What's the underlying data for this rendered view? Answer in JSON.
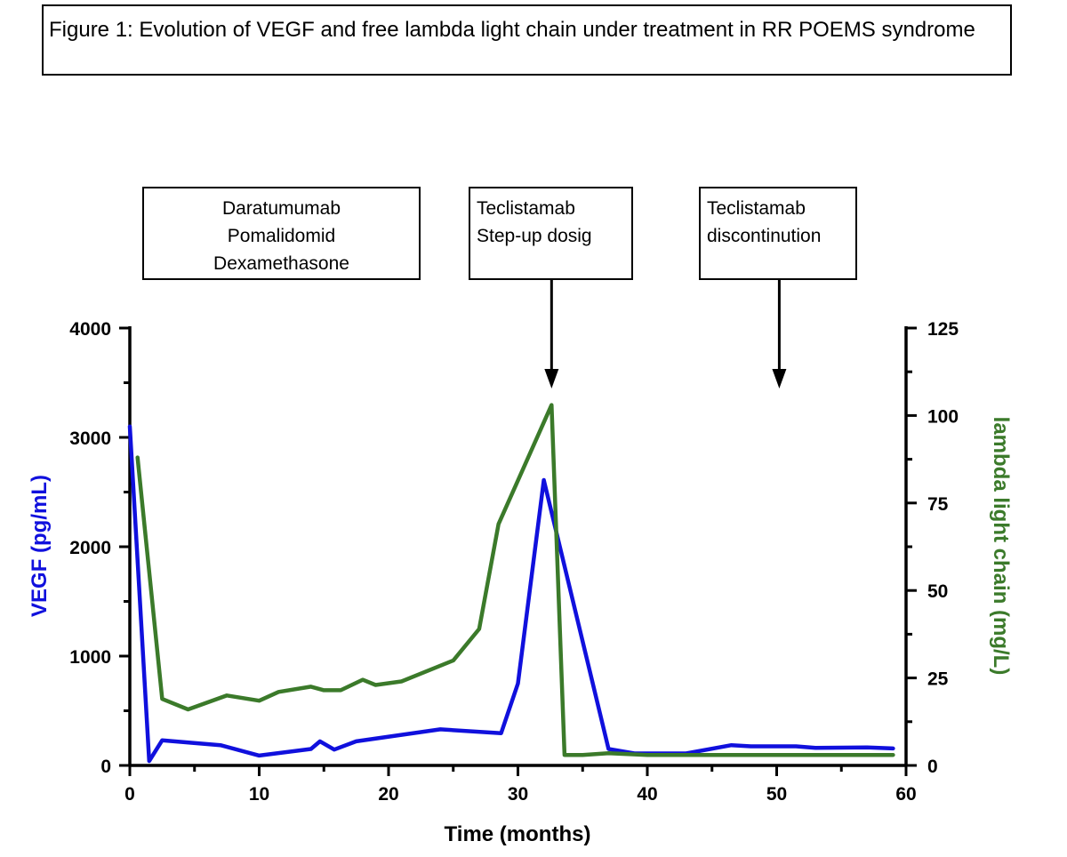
{
  "figure": {
    "title": "Figure 1: Evolution of VEGF and free lambda light chain under treatment in RR POEMS syndrome"
  },
  "colors": {
    "vegf": "#1010dd",
    "lambda": "#3b7a2a",
    "axis": "#000000"
  },
  "annotations": [
    {
      "lines": [
        "Daratumumab",
        "Pomalidomid",
        "Dexamethasone"
      ],
      "align": "center",
      "arrow_x": null
    },
    {
      "lines": [
        "Teclistamab",
        "Step-up dosig"
      ],
      "align": "left",
      "arrow_x": 32.6
    },
    {
      "lines": [
        "Teclistamab",
        "discontinution"
      ],
      "align": "left",
      "arrow_x": 50.2
    }
  ],
  "chart_data": {
    "type": "line",
    "title": "",
    "xlabel": "Time (months)",
    "ylabel": "VEGF (pg/mL)",
    "y2label": "lambda light chain (mg/L)",
    "xlim": [
      0,
      60
    ],
    "ylim": [
      0,
      4000
    ],
    "y2lim": [
      0,
      125
    ],
    "xticks": [
      0,
      10,
      20,
      30,
      40,
      50,
      60
    ],
    "yticks": [
      0,
      1000,
      2000,
      3000,
      4000
    ],
    "y2ticks": [
      0,
      25,
      50,
      75,
      100,
      125
    ],
    "grid": false,
    "series": [
      {
        "name": "VEGF",
        "axis": "left",
        "x": [
          0,
          1.5,
          2.5,
          7,
          10,
          14,
          14.7,
          15.8,
          17.5,
          24,
          28.7,
          30,
          32,
          37,
          39,
          43,
          46.5,
          48,
          51.5,
          53,
          57,
          59
        ],
        "y": [
          3100,
          40,
          230,
          185,
          90,
          150,
          220,
          145,
          220,
          330,
          295,
          750,
          2610,
          150,
          110,
          110,
          185,
          175,
          175,
          160,
          165,
          155
        ]
      },
      {
        "name": "lambda light chain",
        "axis": "right",
        "x": [
          0.6,
          2.5,
          4.5,
          7.5,
          10,
          11.5,
          14,
          15,
          16.3,
          18,
          19,
          21,
          25,
          27,
          28.5,
          32.6,
          33.6,
          35,
          37,
          40,
          59
        ],
        "y": [
          88,
          19,
          16,
          20,
          18.5,
          21,
          22.5,
          21.5,
          21.5,
          24.5,
          23,
          24,
          30,
          39,
          69,
          103,
          3,
          3,
          3.5,
          3,
          3
        ]
      }
    ]
  }
}
